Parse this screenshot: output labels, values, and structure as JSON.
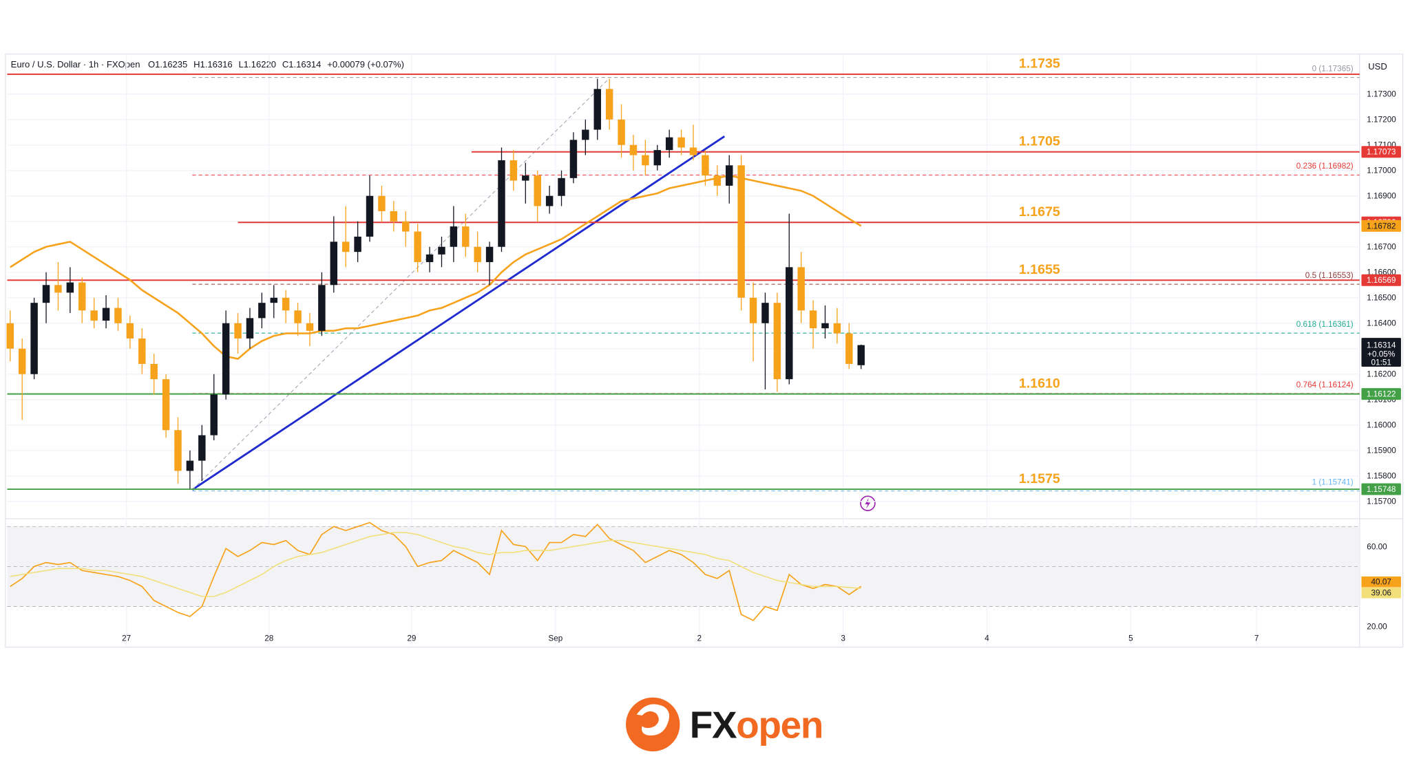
{
  "chart_data": {
    "type": "candlestick",
    "title": "Euro / U.S. Dollar · 1h · FXOpen",
    "ohlc_text": [
      "O1.16235",
      "H1.16316",
      "L1.16220",
      "C1.16314",
      "+0.00079 (+0.07%)"
    ],
    "currency": "USD",
    "up_color": "#131722",
    "down_color": "#f7a21b",
    "open": [
      1.164,
      1.163,
      1.162,
      1.1648,
      1.1655,
      1.1652,
      1.1656,
      1.1645,
      1.1641,
      1.1646,
      1.164,
      1.1634,
      1.1624,
      1.1618,
      1.1598,
      1.1582,
      1.1586,
      1.1596,
      1.1612,
      1.164,
      1.1634,
      1.1642,
      1.1648,
      1.165,
      1.1645,
      1.164,
      1.1637,
      1.1655,
      1.1672,
      1.1668,
      1.1674,
      1.169,
      1.1684,
      1.168,
      1.1676,
      1.1664,
      1.1667,
      1.167,
      1.1678,
      1.167,
      1.1664,
      1.167,
      1.1704,
      1.1696,
      1.1698,
      1.1686,
      1.169,
      1.1697,
      1.1712,
      1.1716,
      1.1732,
      1.172,
      1.171,
      1.1706,
      1.1702,
      1.1708,
      1.1713,
      1.1709,
      1.1706,
      1.1698,
      1.1694,
      1.1702,
      1.165,
      1.164,
      1.1648,
      1.1618,
      1.1662,
      1.1645,
      1.1638,
      1.164,
      1.1636,
      1.16235
    ],
    "high": [
      1.1645,
      1.1634,
      1.165,
      1.166,
      1.1664,
      1.1662,
      1.1658,
      1.165,
      1.1651,
      1.165,
      1.1643,
      1.1638,
      1.1628,
      1.162,
      1.1603,
      1.159,
      1.16,
      1.162,
      1.1645,
      1.1644,
      1.1646,
      1.1652,
      1.1655,
      1.1653,
      1.1648,
      1.1644,
      1.166,
      1.1682,
      1.1686,
      1.168,
      1.1698,
      1.1694,
      1.1688,
      1.1684,
      1.1679,
      1.167,
      1.1674,
      1.1686,
      1.1683,
      1.1676,
      1.1672,
      1.1709,
      1.1708,
      1.1703,
      1.17,
      1.1694,
      1.17,
      1.1715,
      1.172,
      1.1736,
      1.1736,
      1.1726,
      1.1714,
      1.1712,
      1.171,
      1.1716,
      1.1716,
      1.1718,
      1.1708,
      1.1702,
      1.1706,
      1.1706,
      1.1656,
      1.1652,
      1.1652,
      1.1683,
      1.1668,
      1.1649,
      1.1647,
      1.1646,
      1.164,
      1.16316
    ],
    "low": [
      1.1625,
      1.1602,
      1.1618,
      1.164,
      1.1645,
      1.1644,
      1.164,
      1.1638,
      1.1638,
      1.1637,
      1.163,
      1.162,
      1.1612,
      1.1595,
      1.1577,
      1.1575,
      1.1578,
      1.1594,
      1.161,
      1.1628,
      1.163,
      1.1638,
      1.1642,
      1.164,
      1.1635,
      1.1631,
      1.1635,
      1.1652,
      1.1662,
      1.1664,
      1.1672,
      1.168,
      1.1676,
      1.167,
      1.166,
      1.166,
      1.1662,
      1.1664,
      1.1666,
      1.166,
      1.1655,
      1.1668,
      1.1692,
      1.1687,
      1.168,
      1.1683,
      1.1686,
      1.1695,
      1.1706,
      1.1712,
      1.1716,
      1.1705,
      1.17,
      1.1698,
      1.17,
      1.1705,
      1.1706,
      1.1704,
      1.1694,
      1.169,
      1.1687,
      1.1645,
      1.1625,
      1.1614,
      1.1613,
      1.1616,
      1.164,
      1.163,
      1.1634,
      1.1632,
      1.1622,
      1.1622
    ],
    "close": [
      1.163,
      1.162,
      1.1648,
      1.1655,
      1.1652,
      1.1656,
      1.1645,
      1.1641,
      1.1646,
      1.164,
      1.1634,
      1.1624,
      1.1618,
      1.1598,
      1.1582,
      1.1586,
      1.1596,
      1.1612,
      1.164,
      1.1634,
      1.1642,
      1.1648,
      1.165,
      1.1645,
      1.164,
      1.1637,
      1.1655,
      1.1672,
      1.1668,
      1.1674,
      1.169,
      1.1684,
      1.168,
      1.1676,
      1.1664,
      1.1667,
      1.167,
      1.1678,
      1.167,
      1.1664,
      1.167,
      1.1704,
      1.1696,
      1.1698,
      1.1686,
      1.169,
      1.1697,
      1.1712,
      1.1716,
      1.1732,
      1.172,
      1.171,
      1.1706,
      1.1702,
      1.1708,
      1.1713,
      1.1709,
      1.1706,
      1.1698,
      1.1694,
      1.1702,
      1.165,
      1.164,
      1.1648,
      1.1618,
      1.1662,
      1.1645,
      1.1638,
      1.164,
      1.1636,
      1.1624,
      1.16314
    ],
    "ma": {
      "color": "#f7a21b",
      "values": [
        1.1662,
        1.1665,
        1.1668,
        1.167,
        1.1671,
        1.1672,
        1.1669,
        1.1666,
        1.1663,
        1.166,
        1.1657,
        1.1653,
        1.165,
        1.1647,
        1.1644,
        1.164,
        1.1636,
        1.1631,
        1.1627,
        1.1626,
        1.163,
        1.1633,
        1.1635,
        1.1636,
        1.1636,
        1.1636,
        1.1637,
        1.1637,
        1.1638,
        1.1638,
        1.1639,
        1.164,
        1.1641,
        1.1642,
        1.1643,
        1.1645,
        1.1646,
        1.1648,
        1.165,
        1.1652,
        1.1655,
        1.166,
        1.1664,
        1.1667,
        1.1669,
        1.1671,
        1.1673,
        1.1676,
        1.1679,
        1.1682,
        1.1685,
        1.1688,
        1.1689,
        1.169,
        1.1691,
        1.1693,
        1.1694,
        1.1695,
        1.1696,
        1.1697,
        1.1698,
        1.1697,
        1.1696,
        1.1695,
        1.1694,
        1.1693,
        1.1692,
        1.169,
        1.1687,
        1.1684,
        1.1681,
        1.16782
      ]
    },
    "xlim": [
      -0.25,
      112.6
    ],
    "xticks": [
      {
        "value": 9.7,
        "label": "27"
      },
      {
        "value": 21.6,
        "label": "28"
      },
      {
        "value": 33.5,
        "label": "29"
      },
      {
        "value": 45.5,
        "label": "Sep"
      },
      {
        "value": 57.5,
        "label": "2"
      },
      {
        "value": 69.5,
        "label": "3"
      },
      {
        "value": 81.5,
        "label": "4"
      },
      {
        "value": 93.5,
        "label": "5"
      },
      {
        "value": 104,
        "label": "7"
      }
    ],
    "ylim": [
      1.1565,
      1.1745
    ],
    "yticks": [
      {
        "value": 1.157,
        "label": "1.15700"
      },
      {
        "value": 1.158,
        "label": "1.15800"
      },
      {
        "value": 1.159,
        "label": "1.15900"
      },
      {
        "value": 1.16,
        "label": "1.16000"
      },
      {
        "value": 1.161,
        "label": "1.16100"
      },
      {
        "value": 1.162,
        "label": "1.16200"
      },
      {
        "value": 1.163,
        "label": "1.16300"
      },
      {
        "value": 1.164,
        "label": "1.16400"
      },
      {
        "value": 1.165,
        "label": "1.16500"
      },
      {
        "value": 1.166,
        "label": "1.16600"
      },
      {
        "value": 1.167,
        "label": "1.16700"
      },
      {
        "value": 1.168,
        "label": "1.16800"
      },
      {
        "value": 1.169,
        "label": "1.16900"
      },
      {
        "value": 1.17,
        "label": "1.17000"
      },
      {
        "value": 1.171,
        "label": "1.17100"
      },
      {
        "value": 1.172,
        "label": "1.17200"
      },
      {
        "value": 1.173,
        "label": "1.17300"
      }
    ],
    "grid": true,
    "levels": [
      {
        "label": "1.1735",
        "value": 1.17378,
        "color": "#e53935",
        "from": -0.25,
        "badge": false
      },
      {
        "label": "1.1705",
        "value": 1.17073,
        "color": "#e53935",
        "from": 38.5,
        "badge": true
      },
      {
        "label": "1.1675",
        "value": 1.16796,
        "color": "#e53935",
        "from": 19,
        "badge": true
      },
      {
        "label": "1.1655",
        "value": 1.16569,
        "color": "#e53935",
        "from": -0.25,
        "badge": true
      },
      {
        "label": "1.1610",
        "value": 1.16122,
        "color": "#43a047",
        "from": -0.25,
        "badge": true
      },
      {
        "label": "1.1575",
        "value": 1.15748,
        "color": "#43a047",
        "from": -0.25,
        "badge": true
      }
    ],
    "level_text_color": "#f7a21b",
    "fib": [
      {
        "label": "0 (1.17365)",
        "value": 1.17365,
        "color": "#9598a1",
        "from": 15.2
      },
      {
        "label": "0.236 (1.16982)",
        "value": 1.16982,
        "color": "#e53935",
        "from": 15.2
      },
      {
        "label": "0.5 (1.16553)",
        "value": 1.16553,
        "color": "#8d3b3b",
        "from": 15.2
      },
      {
        "label": "0.618 (1.16361)",
        "value": 1.16361,
        "color": "#22ab94",
        "from": 15.2
      },
      {
        "label": "0.764 (1.16124)",
        "value": 1.16124,
        "color": "#e53935",
        "from": 15.2
      },
      {
        "label": "1 (1.15741)",
        "value": 1.15741,
        "color": "#64b5f6",
        "from": 15.2
      }
    ],
    "lines": [
      {
        "x": [
          15.2,
          59.6
        ],
        "y": [
          1.15746,
          1.17134
        ],
        "color": "#1f2bd1",
        "dashed": false
      },
      {
        "x": [
          15.2,
          49.8
        ],
        "y": [
          1.15746,
          1.17353
        ],
        "color": "#a0a3ab",
        "dashed": true
      }
    ],
    "last_change": "+0.05%",
    "countdown": "01:51",
    "rsi": {
      "ylim": [
        11,
        72.6
      ],
      "yticks": [
        {
          "value": 60,
          "label": "60.00"
        },
        {
          "value": 20,
          "label": "20.00"
        }
      ],
      "bands": [
        70,
        50,
        30
      ],
      "series": [
        {
          "color": "#f7a21b",
          "values": [
            40,
            44,
            50,
            52,
            51,
            52,
            48,
            47,
            46,
            45,
            43,
            40,
            33,
            30,
            27,
            25,
            30,
            45,
            59,
            55,
            58,
            62,
            61,
            63,
            58,
            56,
            66,
            70,
            68,
            70,
            72,
            68,
            66,
            60,
            50,
            52,
            53,
            58,
            55,
            52,
            46,
            68,
            61,
            60,
            53,
            62,
            62,
            66,
            65,
            71,
            64,
            61,
            58,
            52,
            55,
            58,
            56,
            52,
            46,
            44,
            48,
            26,
            23,
            30,
            28,
            46,
            41,
            39,
            41,
            40,
            36,
            40.07
          ]
        },
        {
          "color": "#f2df7a",
          "values": [
            45,
            46,
            47,
            48,
            49,
            49,
            49,
            48,
            48,
            47,
            46,
            45,
            43,
            41,
            39,
            37,
            35,
            35,
            37,
            40,
            43,
            46,
            50,
            53,
            55,
            56,
            57,
            59,
            61,
            63,
            65,
            66,
            67,
            67,
            66,
            64,
            62,
            60,
            59,
            57,
            56,
            57,
            57,
            58,
            58,
            58,
            59,
            60,
            61,
            62,
            63,
            63,
            62,
            61,
            60,
            59,
            58,
            57,
            56,
            54,
            53,
            50,
            47,
            45,
            43,
            42,
            41,
            40,
            40,
            40,
            39.5,
            39.06
          ]
        }
      ]
    }
  },
  "brand": [
    "FX",
    "open"
  ]
}
